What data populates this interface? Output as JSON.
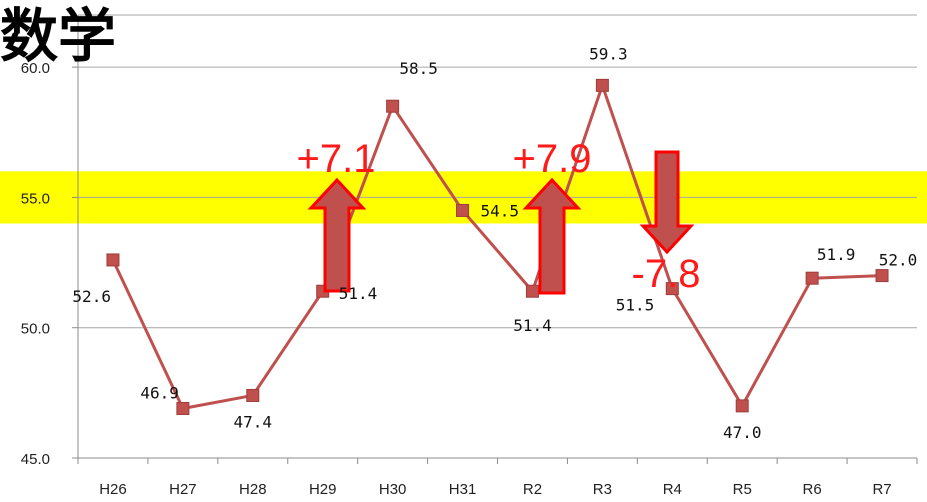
{
  "chart_data": {
    "type": "line",
    "title": "数学",
    "categories": [
      "H26",
      "H27",
      "H28",
      "H29",
      "H30",
      "H31",
      "R2",
      "R3",
      "R4",
      "R5",
      "R6",
      "R7"
    ],
    "values": [
      52.6,
      46.9,
      47.4,
      51.4,
      58.5,
      54.5,
      51.4,
      59.3,
      51.5,
      47.0,
      51.9,
      52.0
    ],
    "value_labels": [
      "52.6",
      "46.9",
      "47.4",
      "51.4",
      "58.5",
      "54.5",
      "51.4",
      "59.3",
      "51.5",
      "47.0",
      "51.9",
      "52.0"
    ],
    "ylim": [
      45.0,
      62.0
    ],
    "yticks": [
      "45.0",
      "50.0",
      "55.0",
      "60.0"
    ],
    "ytick_values": [
      45,
      50,
      55,
      60
    ],
    "grid": true,
    "series_color": "#c0504d",
    "highlight_band": {
      "from": 54.0,
      "to": 56.0,
      "color": "#ffff00"
    },
    "annotations": [
      {
        "text": "+7.1",
        "direction": "up",
        "category": "H29"
      },
      {
        "text": "+7.9",
        "direction": "up",
        "category": "R2"
      },
      {
        "text": "-7.8",
        "direction": "down",
        "category": "R3"
      }
    ],
    "annotation_color": "#ff0000",
    "arrow_fill": "#c0504d"
  }
}
